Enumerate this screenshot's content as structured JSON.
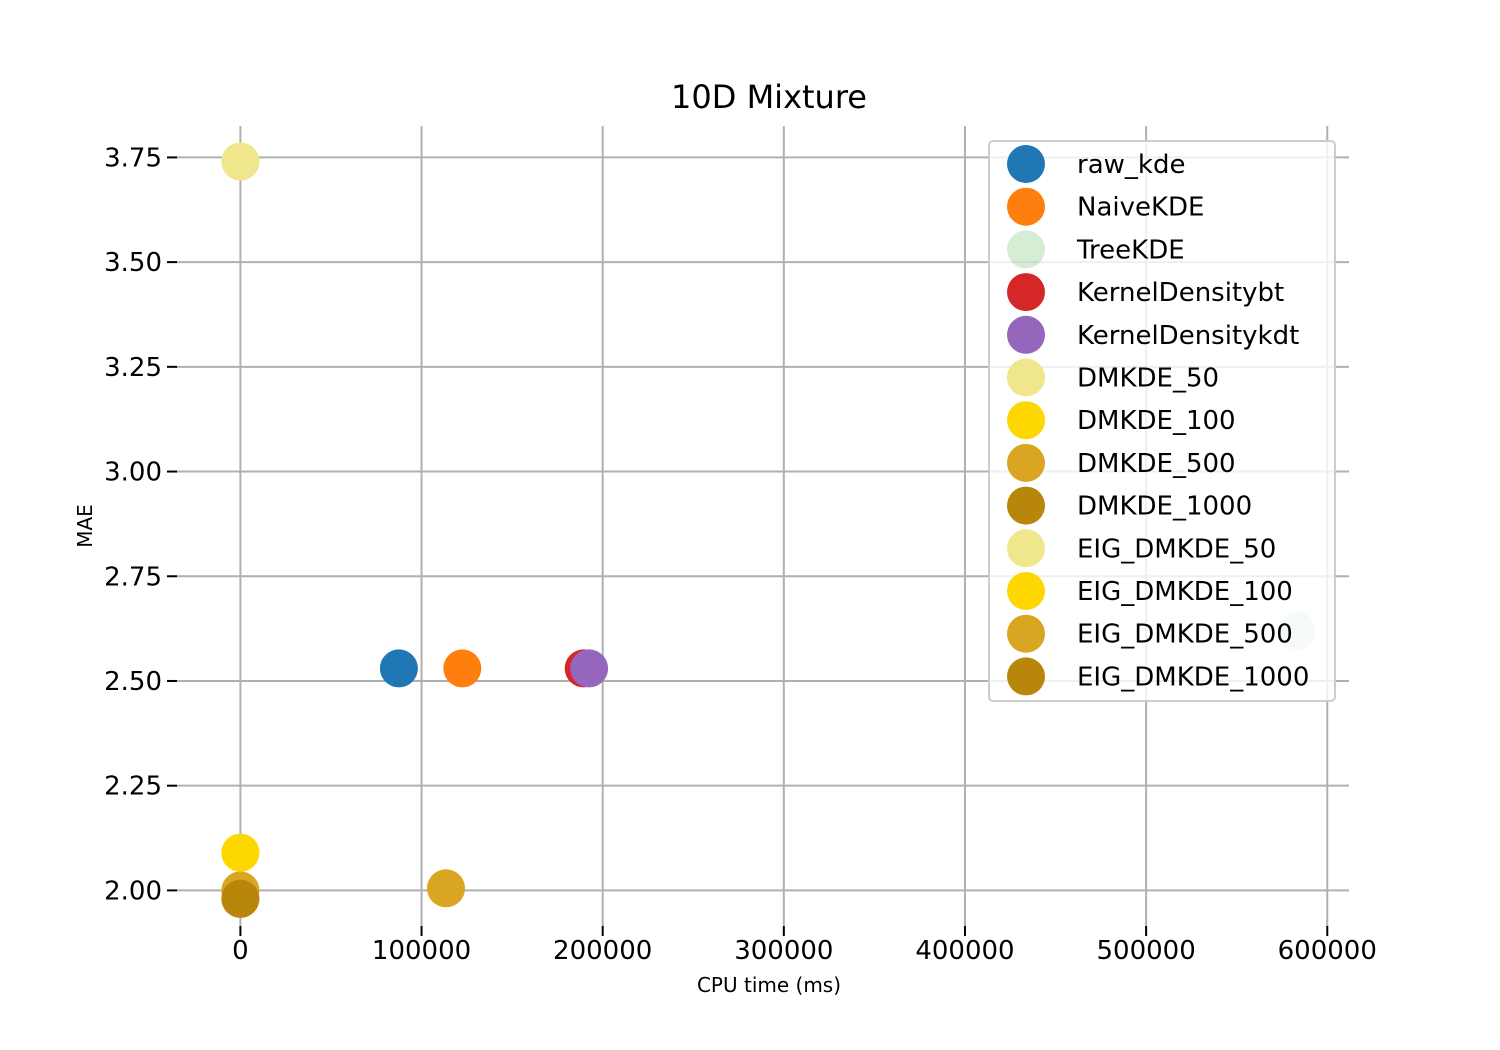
{
  "chart_data": {
    "type": "scatter",
    "title": "10D Mixture",
    "xlabel": "CPU time (ms)",
    "ylabel": "MAE",
    "xlim": [
      -35000,
      612000
    ],
    "ylim": [
      1.915,
      3.825
    ],
    "xticks": [
      0,
      100000,
      200000,
      300000,
      400000,
      500000,
      600000
    ],
    "xtick_labels": [
      "0",
      "100000",
      "200000",
      "300000",
      "400000",
      "500000",
      "600000"
    ],
    "yticks": [
      2.0,
      2.25,
      2.5,
      2.75,
      3.0,
      3.25,
      3.5,
      3.75
    ],
    "ytick_labels": [
      "2.00",
      "2.25",
      "2.50",
      "2.75",
      "3.00",
      "3.25",
      "3.50",
      "3.75"
    ],
    "grid": true,
    "legend_position": "top-right",
    "series": [
      {
        "name": "raw_kde",
        "color": "#1f77b4",
        "x": [
          87500
        ],
        "y": [
          2.53
        ],
        "alpha": 1
      },
      {
        "name": "NaiveKDE",
        "color": "#ff7f0e",
        "x": [
          122500
        ],
        "y": [
          2.53
        ],
        "alpha": 1
      },
      {
        "name": "TreeKDE",
        "color": "#2ca02c",
        "x": [
          583000
        ],
        "y": [
          2.62
        ],
        "alpha": 0.2
      },
      {
        "name": "KernelDensitybt",
        "color": "#d62728",
        "x": [
          189500
        ],
        "y": [
          2.53
        ],
        "alpha": 1
      },
      {
        "name": "KernelDensitykdt",
        "color": "#9467bd",
        "x": [
          192500
        ],
        "y": [
          2.53
        ],
        "alpha": 1
      },
      {
        "name": "DMKDE_50",
        "color": "#f0e68c",
        "x": [
          0
        ],
        "y": [
          3.74
        ],
        "alpha": 1
      },
      {
        "name": "DMKDE_100",
        "color": "#ffd700",
        "x": [
          0
        ],
        "y": [
          2.09
        ],
        "alpha": 1
      },
      {
        "name": "DMKDE_500",
        "color": "#daa520",
        "x": [
          0
        ],
        "y": [
          2.0
        ],
        "alpha": 1
      },
      {
        "name": "DMKDE_1000",
        "color": "#b8860b",
        "x": [
          0
        ],
        "y": [
          1.98
        ],
        "alpha": 1
      },
      {
        "name": "EIG_DMKDE_50",
        "color": "#f0e68c",
        "x": [
          0
        ],
        "y": [
          3.74
        ],
        "alpha": 1
      },
      {
        "name": "EIG_DMKDE_100",
        "color": "#ffd700",
        "x": [
          0
        ],
        "y": [
          2.09
        ],
        "alpha": 1
      },
      {
        "name": "EIG_DMKDE_500",
        "color": "#daa520",
        "x": [
          113500
        ],
        "y": [
          2.005
        ],
        "alpha": 1
      },
      {
        "name": "EIG_DMKDE_1000",
        "color": "#b8860b",
        "x": [
          0
        ],
        "y": [
          1.98
        ],
        "alpha": 1
      }
    ]
  }
}
